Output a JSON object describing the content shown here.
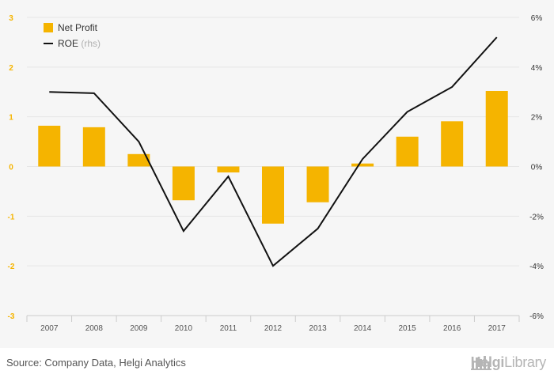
{
  "chart_data": {
    "type": "bar+line",
    "categories": [
      "2007",
      "2008",
      "2009",
      "2010",
      "2011",
      "2012",
      "2013",
      "2014",
      "2015",
      "2016",
      "2017"
    ],
    "series": [
      {
        "name": "Net Profit",
        "type": "bar",
        "axis": "left",
        "color": "#f5b400",
        "values": [
          0.82,
          0.79,
          0.25,
          -0.68,
          -0.12,
          -1.15,
          -0.72,
          0.06,
          0.6,
          0.91,
          1.52
        ]
      },
      {
        "name": "ROE",
        "name_suffix": "(rhs)",
        "type": "line",
        "axis": "right",
        "color": "#111111",
        "values": [
          3.0,
          2.95,
          1.0,
          -2.6,
          -0.4,
          -4.0,
          -2.5,
          0.3,
          2.2,
          3.2,
          5.2
        ]
      }
    ],
    "y_left": {
      "ticks": [
        "3",
        "2",
        "1",
        "0",
        "-1",
        "-2",
        "-3"
      ],
      "range": [
        -3,
        3
      ],
      "color": "#f5b400"
    },
    "y_right": {
      "ticks": [
        "6%",
        "4%",
        "2%",
        "0%",
        "-2%",
        "-4%",
        "-6%"
      ],
      "range": [
        -6,
        6
      ]
    },
    "grid": true,
    "legend_position": "top-left"
  },
  "footer": {
    "source": "Source: Company Data, Helgi Analytics",
    "brand_bold": "Helgi",
    "brand_light": "Library"
  }
}
